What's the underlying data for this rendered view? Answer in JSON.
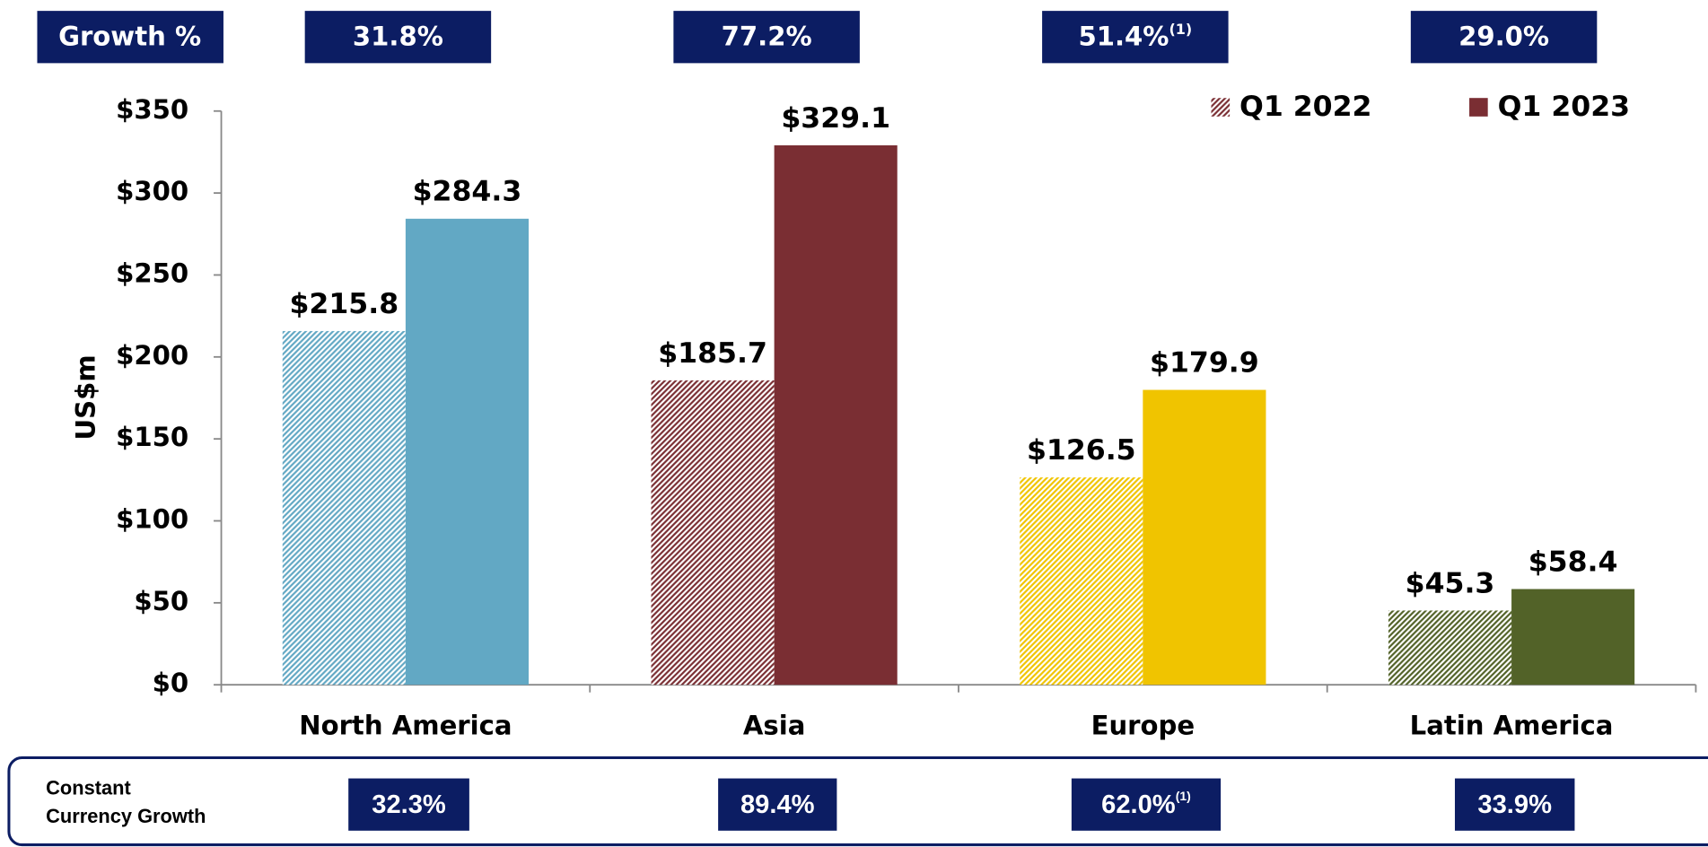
{
  "chart_data": {
    "type": "bar",
    "y_label": "US$m",
    "categories": [
      "North America",
      "Asia",
      "Europe",
      "Latin America"
    ],
    "category_colors": [
      "#62a8c4",
      "#7a2e33",
      "#f0c400",
      "#526228"
    ],
    "series": [
      {
        "name": "Q1 2022",
        "color": "#7a2e33",
        "hatched": true,
        "values": [
          215.8,
          185.7,
          126.5,
          45.3
        ],
        "value_labels": [
          "$215.8",
          "$185.7",
          "$126.5",
          "$45.3"
        ]
      },
      {
        "name": "Q1 2023",
        "color": "#7a2e33",
        "hatched": false,
        "values": [
          284.3,
          329.1,
          179.9,
          58.4
        ],
        "value_labels": [
          "$284.3",
          "$329.1",
          "$179.9",
          "$58.4"
        ]
      }
    ],
    "ylim": [
      0,
      350
    ],
    "yticks": [
      {
        "value": 0,
        "label": "$0"
      },
      {
        "value": 50,
        "label": "$50"
      },
      {
        "value": 100,
        "label": "$100"
      },
      {
        "value": 150,
        "label": "$150"
      },
      {
        "value": 200,
        "label": "$200"
      },
      {
        "value": 250,
        "label": "$250"
      },
      {
        "value": 300,
        "label": "$300"
      },
      {
        "value": 350,
        "label": "$350"
      }
    ],
    "legend": "top-right",
    "growth": {
      "title": "Growth %",
      "items": [
        {
          "text": "31.8%"
        },
        {
          "text": "77.2%"
        },
        {
          "text": "51.4%",
          "note": "(1)"
        },
        {
          "text": "29.0%"
        }
      ]
    },
    "constant_currency": {
      "title_lines": [
        "Constant",
        "Currency Growth"
      ],
      "items": [
        {
          "text": "32.3%"
        },
        {
          "text": "89.4%"
        },
        {
          "text": "62.0%",
          "note": "(1)"
        },
        {
          "text": "33.9%"
        }
      ]
    }
  }
}
